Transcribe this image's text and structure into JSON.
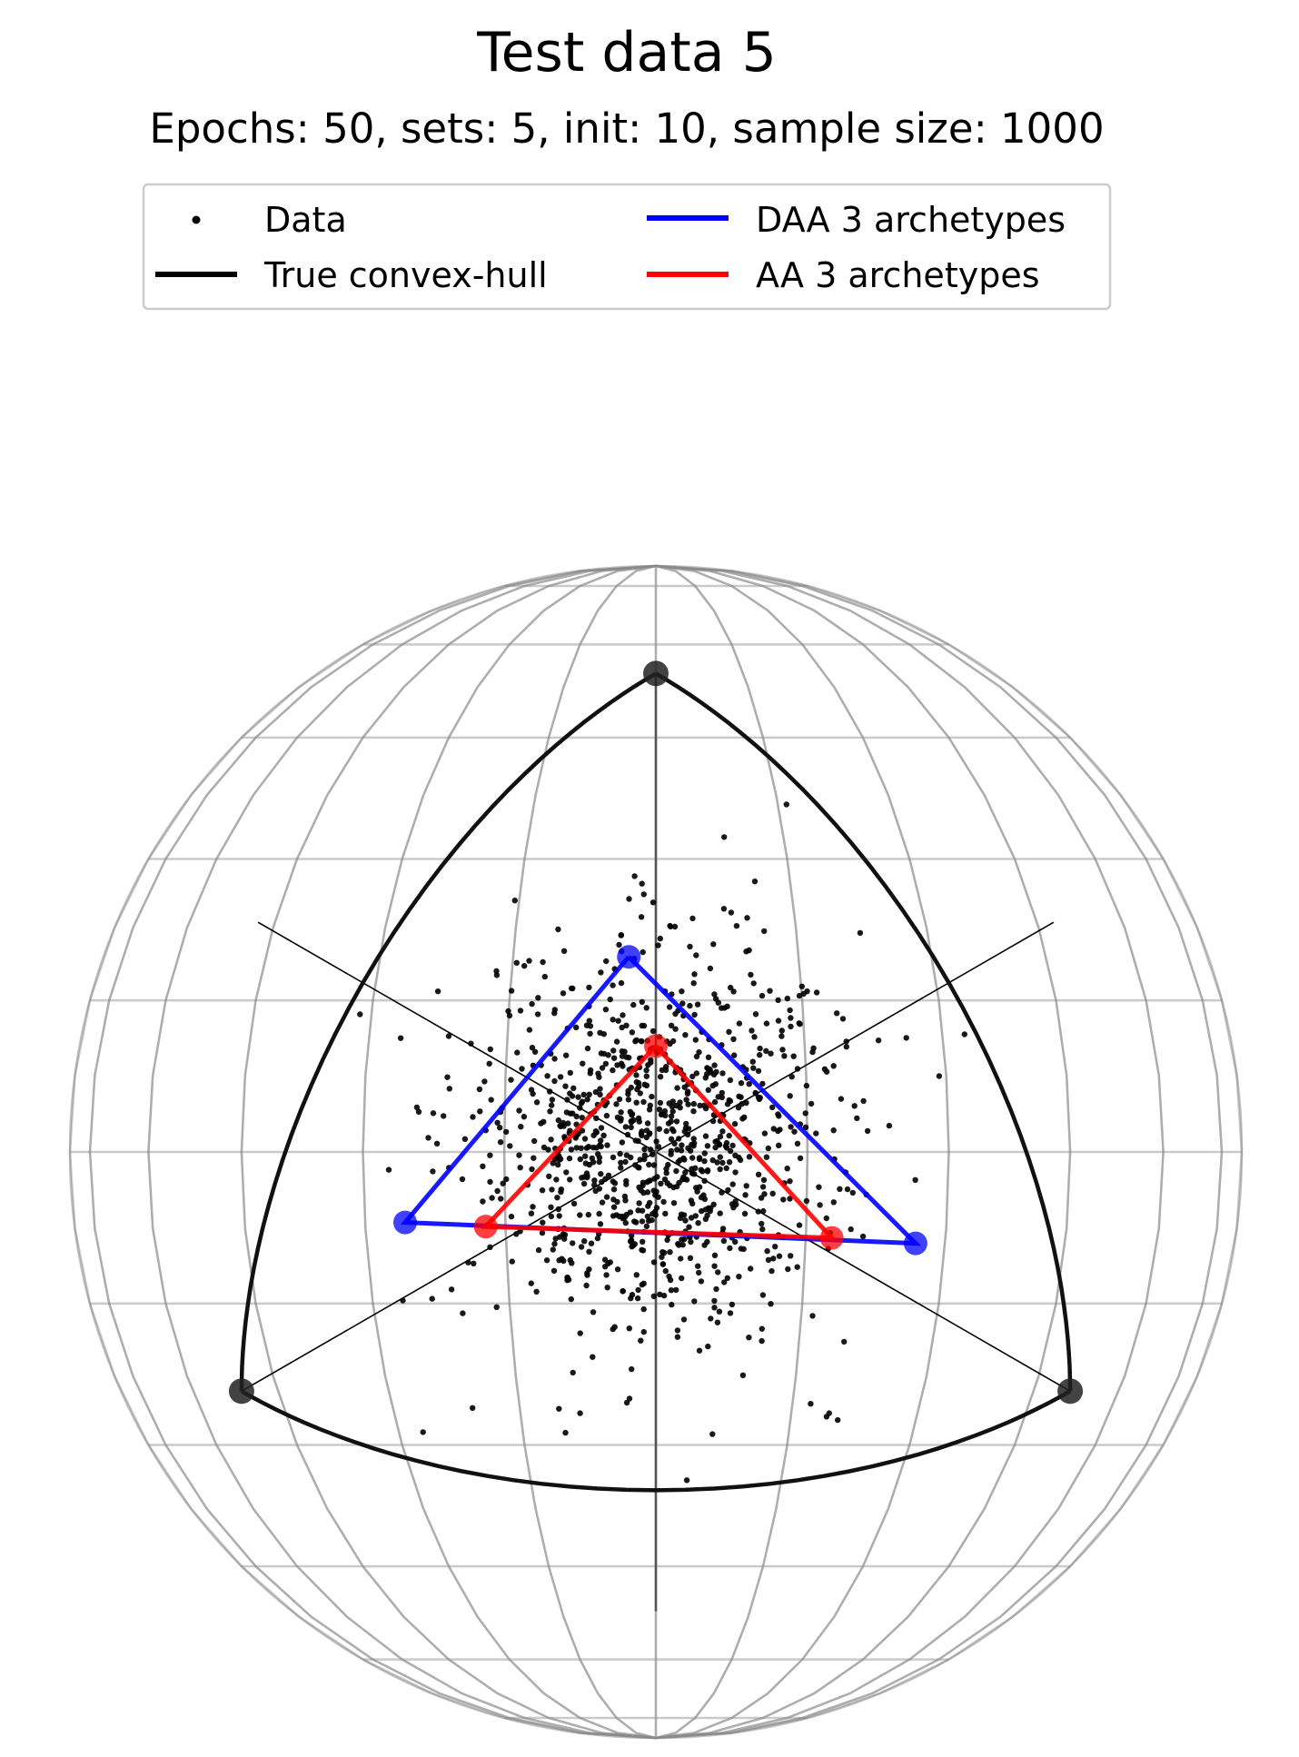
{
  "chart_data": {
    "type": "scatter",
    "title": "Test data 5",
    "subtitle": "Epochs: 50, sets: 5, init: 10, sample size: 1000",
    "projection": "3d sphere (unit simplex, viewed along (1,1,1))",
    "legend": {
      "placement": "top-center",
      "entries": [
        {
          "label": "Data",
          "marker": "point",
          "color": "#000000"
        },
        {
          "label": "DAA 3 archetypes",
          "marker": "line",
          "color": "#0000ff"
        },
        {
          "label": "True convex-hull",
          "marker": "line",
          "color": "#000000"
        },
        {
          "label": "AA 3 archetypes",
          "marker": "line",
          "color": "#ff0000"
        }
      ]
    },
    "true_hull_vertices": [
      [
        1,
        0,
        0
      ],
      [
        0,
        1,
        0
      ],
      [
        0,
        0,
        1
      ]
    ],
    "series": [
      {
        "name": "DAA 3 archetypes",
        "color": "#0000ff",
        "vertices": [
          [
            0.27,
            0.23,
            0.5
          ],
          [
            0.56,
            0.17,
            0.27
          ],
          [
            0.17,
            0.58,
            0.25
          ]
        ]
      },
      {
        "name": "AA 3 archetypes",
        "color": "#ff0000",
        "vertices": [
          [
            0.29,
            0.29,
            0.42
          ],
          [
            0.49,
            0.24,
            0.27
          ],
          [
            0.24,
            0.5,
            0.26
          ]
        ]
      },
      {
        "name": "Data",
        "color": "#000000",
        "sample_size": 1000,
        "distribution_mean": [
          0.33,
          0.33,
          0.34
        ],
        "distribution_std": 0.09
      }
    ],
    "axes_visible": false,
    "wireframe_sphere": true
  }
}
